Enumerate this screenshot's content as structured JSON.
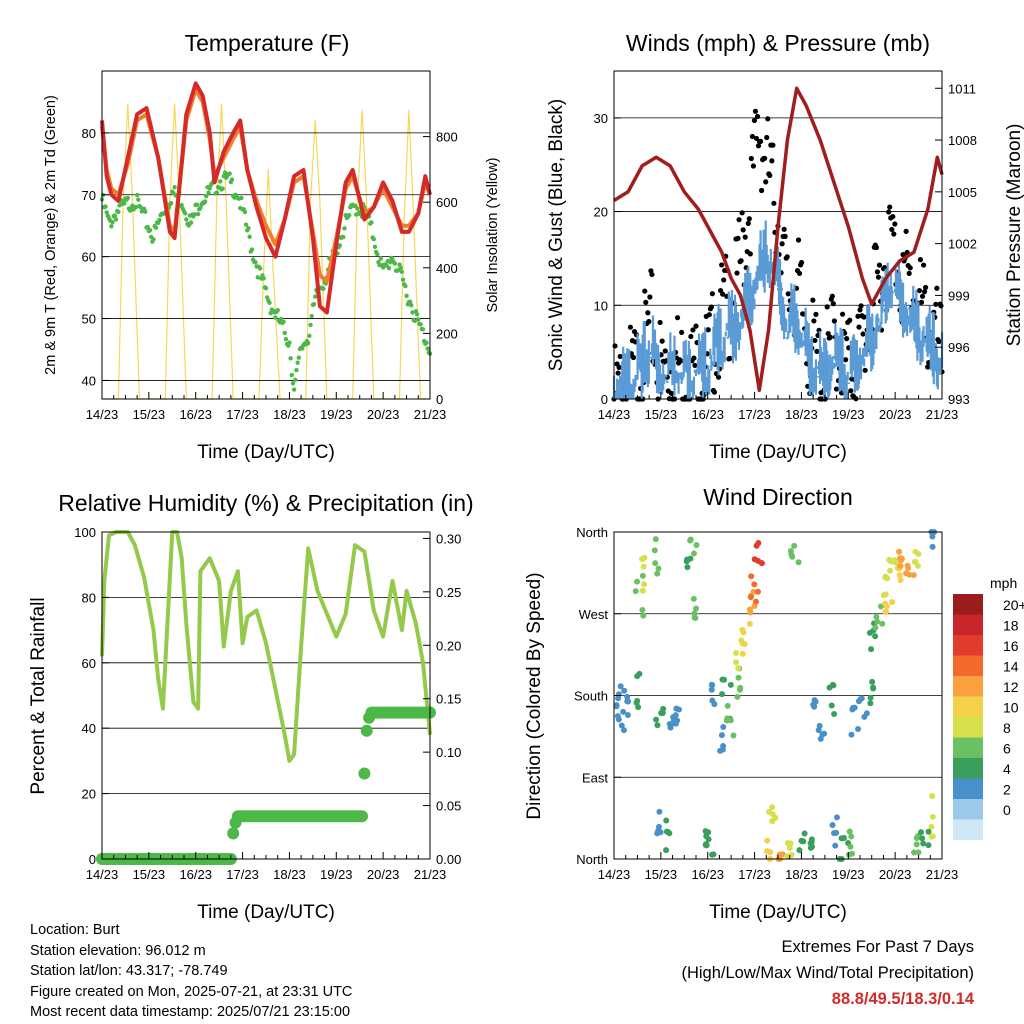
{
  "x_ticks": [
    "14/23",
    "15/23",
    "16/23",
    "17/23",
    "18/23",
    "19/23",
    "20/23",
    "21/23"
  ],
  "footer": {
    "location": "Location: Burt",
    "elevation": "Station elevation: 96.012 m",
    "latlon": "Station lat/lon: 43.317; -78.749",
    "created": "Figure created on Mon, 2025-07-21, at 23:31 UTC",
    "recent": "Most recent data timestamp: 2025/07/21 23:15:00",
    "extremes_title": "Extremes For Past 7 Days",
    "extremes_sub": "(High/Low/Max Wind/Total Precipitation)",
    "extremes_values": "88.8/49.5/18.3/0.14"
  },
  "colors": {
    "temp2m": "#d42a2a",
    "temp9m": "#f07f2a",
    "dewpoint": "#4cb848",
    "solar": "#f5d85a",
    "wind": "#5b9bd5",
    "gust": "#000000",
    "pressure": "#a01e1e",
    "rh": "#94c94c",
    "precip": "#4cb848",
    "extremes": "#d42a2a"
  },
  "chart_data": [
    {
      "type": "line",
      "title": "Temperature (F)",
      "xlabel": "Time (Day/UTC)",
      "ylabel": "2m & 9m T (Red, Orange) & 2m Td (Green)",
      "y2label": "Solar Insolation (Yellow)",
      "xlim": [
        0,
        7
      ],
      "ylim": [
        37,
        90
      ],
      "y2lim": [
        0,
        1000
      ],
      "yticks": [
        40,
        50,
        60,
        70,
        80
      ],
      "y2ticks": [
        0,
        200,
        400,
        600,
        800
      ],
      "series": [
        {
          "key": "t2m",
          "x": [
            0,
            0.1,
            0.2,
            0.35,
            0.55,
            0.75,
            0.95,
            1.2,
            1.45,
            1.55,
            1.8,
            2.0,
            2.15,
            2.3,
            2.4,
            2.6,
            2.8,
            2.95,
            3.1,
            3.3,
            3.5,
            3.7,
            3.9,
            4.1,
            4.3,
            4.5,
            4.65,
            4.8,
            5.0,
            5.2,
            5.35,
            5.6,
            5.8,
            6.0,
            6.2,
            6.4,
            6.55,
            6.75,
            6.9,
            7.0
          ],
          "values": [
            82,
            73,
            70,
            69,
            76,
            83,
            84,
            76,
            64,
            63,
            83,
            88,
            86,
            80,
            72,
            77,
            80,
            82,
            74,
            68,
            63,
            60,
            66,
            73,
            74,
            63,
            52,
            51,
            62,
            72,
            74,
            66,
            68,
            72,
            69,
            64,
            64,
            67,
            73,
            70
          ]
        },
        {
          "key": "t9m",
          "x": [
            0,
            0.1,
            0.2,
            0.35,
            0.55,
            0.75,
            0.95,
            1.2,
            1.45,
            1.55,
            1.8,
            2.0,
            2.15,
            2.3,
            2.4,
            2.6,
            2.8,
            2.95,
            3.1,
            3.3,
            3.5,
            3.7,
            3.9,
            4.1,
            4.3,
            4.5,
            4.65,
            4.8,
            5.0,
            5.2,
            5.35,
            5.6,
            5.8,
            6.0,
            6.2,
            6.4,
            6.55,
            6.75,
            6.9,
            7.0
          ],
          "values": [
            81,
            74,
            71,
            70,
            75,
            82,
            83,
            76,
            65,
            64,
            82,
            87,
            85,
            79,
            73,
            76,
            79,
            81,
            74,
            69,
            65,
            62,
            66,
            72,
            73,
            64,
            57,
            56,
            63,
            71,
            73,
            67,
            68,
            71,
            68,
            65,
            65,
            67,
            72,
            70
          ]
        },
        {
          "key": "td",
          "x": [
            0,
            0.15,
            0.3,
            0.5,
            0.7,
            0.9,
            1.1,
            1.3,
            1.5,
            1.7,
            1.9,
            2.1,
            2.3,
            2.5,
            2.7,
            2.9,
            3.0,
            3.2,
            3.4,
            3.6,
            3.8,
            4.0,
            4.1,
            4.25,
            4.4,
            4.6,
            4.8,
            5.0,
            5.2,
            5.4,
            5.6,
            5.8,
            6.0,
            6.2,
            6.4,
            6.6,
            6.8,
            7.0
          ],
          "values": [
            70,
            66,
            68,
            69,
            70,
            67,
            64,
            68,
            71,
            70,
            66,
            70,
            71,
            73,
            73,
            71,
            68,
            62,
            57,
            53,
            50,
            47,
            39,
            46,
            48,
            55,
            58,
            62,
            66,
            69,
            68,
            64,
            58,
            61,
            57,
            53,
            49,
            46
          ]
        },
        {
          "key": "solar",
          "x": [
            0,
            0.35,
            0.45,
            0.55,
            0.65,
            0.8,
            1.35,
            1.45,
            1.55,
            1.65,
            1.8,
            2.35,
            2.45,
            2.55,
            2.65,
            2.8,
            3.35,
            3.45,
            3.55,
            3.65,
            3.8,
            4.35,
            4.45,
            4.55,
            4.65,
            4.8,
            5.35,
            5.45,
            5.55,
            5.65,
            5.8,
            6.35,
            6.45,
            6.55,
            6.65,
            6.8,
            7.0
          ],
          "values": [
            0,
            0,
            600,
            900,
            600,
            0,
            0,
            600,
            900,
            600,
            0,
            0,
            600,
            900,
            600,
            0,
            0,
            400,
            700,
            400,
            0,
            0,
            600,
            850,
            600,
            0,
            0,
            600,
            880,
            600,
            0,
            0,
            550,
            880,
            550,
            0,
            0
          ]
        }
      ]
    },
    {
      "type": "scatter",
      "title": "Winds (mph) & Pressure (mb)",
      "xlabel": "Time (Day/UTC)",
      "ylabel": "Sonic Wind & Gust (Blue, Black)",
      "y2label": "Station Pressure (Maroon)",
      "xlim": [
        0,
        7
      ],
      "ylim": [
        0,
        35
      ],
      "y2lim": [
        993,
        1012
      ],
      "yticks": [
        0,
        10,
        20,
        30
      ],
      "y2ticks": [
        993,
        996,
        999,
        1002,
        1005,
        1008,
        1011
      ],
      "series": [
        {
          "key": "wind",
          "x": [
            0,
            0.5,
            0.8,
            1.0,
            1.3,
            1.6,
            2.0,
            2.3,
            2.6,
            2.9,
            3.1,
            3.3,
            3.5,
            3.7,
            3.9,
            4.2,
            4.5,
            4.7,
            5.0,
            5.3,
            5.6,
            5.9,
            6.1,
            6.3,
            6.6,
            6.9,
            7.0
          ],
          "values": [
            2,
            4,
            7,
            4,
            5,
            4,
            5,
            8,
            9,
            12,
            15,
            17,
            14,
            9,
            10,
            5,
            4,
            6,
            4,
            6,
            9,
            14,
            12,
            10,
            8,
            6,
            5
          ]
        },
        {
          "key": "gust",
          "x": [
            0,
            0.5,
            0.8,
            1.0,
            1.3,
            1.6,
            2.0,
            2.3,
            2.6,
            2.9,
            3.1,
            3.3,
            3.5,
            3.7,
            3.9,
            4.2,
            4.5,
            4.7,
            5.0,
            5.3,
            5.6,
            5.9,
            6.1,
            6.3,
            6.6,
            6.9,
            7.0
          ],
          "values": [
            3,
            6,
            11,
            6,
            7,
            6,
            7,
            12,
            14,
            24,
            32,
            27,
            22,
            14,
            15,
            8,
            6,
            10,
            6,
            9,
            14,
            20,
            17,
            15,
            12,
            9,
            7
          ]
        },
        {
          "key": "pressure",
          "x": [
            0,
            0.3,
            0.6,
            0.9,
            1.2,
            1.5,
            1.8,
            2.1,
            2.3,
            2.5,
            2.7,
            2.9,
            3.1,
            3.3,
            3.5,
            3.7,
            3.9,
            4.1,
            4.4,
            4.7,
            5.0,
            5.3,
            5.5,
            5.8,
            6.1,
            6.4,
            6.7,
            6.9,
            7.0
          ],
          "values": [
            1004.5,
            1005,
            1006.5,
            1007,
            1006.5,
            1005,
            1004,
            1002.5,
            1001.5,
            1000,
            999,
            997,
            993.5,
            997,
            1003,
            1008,
            1011,
            1010,
            1008,
            1005.5,
            1003,
            1000,
            998.5,
            1000,
            1001,
            1001.5,
            1004,
            1007,
            1006
          ]
        }
      ]
    },
    {
      "type": "line",
      "title": "Relative Humidity (%) & Precipitation (in)",
      "xlabel": "Time (Day/UTC)",
      "ylabel": "Percent & Total Rainfall",
      "xlim": [
        0,
        7
      ],
      "ylim": [
        0,
        100
      ],
      "y2lim": [
        0,
        0.306
      ],
      "yticks": [
        0,
        20,
        40,
        60,
        80,
        100
      ],
      "y2ticks": [
        0.0,
        0.05,
        0.1,
        0.15,
        0.2,
        0.25,
        0.3
      ],
      "series": [
        {
          "key": "rh",
          "x": [
            0,
            0.05,
            0.15,
            0.3,
            0.55,
            0.7,
            0.9,
            1.1,
            1.2,
            1.3,
            1.5,
            1.6,
            1.7,
            1.8,
            1.95,
            2.05,
            2.1,
            2.3,
            2.5,
            2.6,
            2.75,
            2.9,
            3.0,
            3.1,
            3.3,
            3.5,
            3.7,
            3.9,
            4.0,
            4.1,
            4.25,
            4.4,
            4.6,
            4.8,
            5.0,
            5.2,
            5.4,
            5.6,
            5.8,
            6.0,
            6.2,
            6.4,
            6.5,
            6.7,
            6.85,
            7.0
          ],
          "values": [
            62,
            85,
            99,
            100,
            100,
            96,
            86,
            70,
            55,
            46,
            100,
            100,
            92,
            72,
            48,
            46,
            88,
            92,
            85,
            65,
            82,
            88,
            66,
            74,
            76,
            66,
            52,
            38,
            30,
            32,
            65,
            95,
            82,
            75,
            68,
            75,
            96,
            94,
            76,
            68,
            85,
            70,
            82,
            72,
            60,
            38
          ]
        },
        {
          "key": "precip",
          "x": [
            0,
            2.75,
            2.78,
            2.88,
            5.55,
            5.6,
            5.65,
            5.72,
            7.0
          ],
          "values": [
            0,
            0,
            0.02,
            0.04,
            0.04,
            0.08,
            0.12,
            0.137,
            0.137
          ]
        }
      ]
    },
    {
      "type": "scatter",
      "title": "Wind Direction",
      "xlabel": "Time (Day/UTC)",
      "ylabel": "Direction (Colored By Speed)",
      "xlim": [
        0,
        7
      ],
      "ylim": [
        0,
        360
      ],
      "yticklabels": [
        "North",
        "East",
        "South",
        "West",
        "North"
      ],
      "legend_title": "mph",
      "legend_labels": [
        "20+",
        "18",
        "16",
        "14",
        "12",
        "10",
        "8",
        "6",
        "4",
        "2",
        "0"
      ],
      "legend_colors": [
        "#9b1c1c",
        "#c8242a",
        "#e23a2c",
        "#f26a2e",
        "#f8a13e",
        "#f5d14a",
        "#d6e04d",
        "#6cc064",
        "#3a9e5c",
        "#4a90c8",
        "#9cc9ea",
        "#cfe8f7"
      ],
      "series": [
        {
          "key": "dir",
          "x": [
            0.1,
            0.2,
            0.35,
            0.5,
            0.6,
            0.75,
            0.9,
            1.0,
            1.05,
            1.15,
            1.3,
            1.45,
            1.6,
            1.75,
            1.85,
            2.0,
            2.1,
            2.2,
            2.3,
            2.45,
            2.55,
            2.65,
            2.75,
            2.85,
            2.95,
            3.05,
            3.15,
            3.3,
            3.45,
            3.6,
            3.75,
            3.9,
            4.1,
            4.2,
            4.35,
            4.5,
            4.65,
            4.8,
            4.95,
            5.05,
            5.2,
            5.35,
            5.5,
            5.6,
            5.7,
            5.8,
            5.9,
            6.0,
            6.1,
            6.2,
            6.35,
            6.45,
            6.55,
            6.7,
            6.8,
            6.9
          ],
          "values": [
            180,
            170,
            175,
            200,
            300,
            320,
            345,
            170,
            60,
            40,
            180,
            160,
            355,
            345,
            300,
            20,
            40,
            180,
            150,
            190,
            170,
            200,
            240,
            260,
            290,
            315,
            340,
            30,
            50,
            20,
            10,
            360,
            20,
            40,
            170,
            160,
            180,
            50,
            20,
            30,
            170,
            180,
            200,
            250,
            280,
            300,
            300,
            320,
            335,
            330,
            340,
            330,
            40,
            20,
            60,
            360
          ],
          "speeds": [
            3,
            3,
            4,
            5,
            7,
            9,
            8,
            6,
            4,
            5,
            3,
            4,
            6,
            7,
            7,
            6,
            5,
            3,
            4,
            6,
            7,
            8,
            10,
            12,
            14,
            16,
            18,
            12,
            10,
            14,
            9,
            8,
            6,
            5,
            3,
            4,
            5,
            4,
            6,
            7,
            3,
            4,
            5,
            6,
            8,
            10,
            11,
            9,
            12,
            14,
            14,
            10,
            8,
            6,
            9,
            4
          ]
        }
      ]
    }
  ]
}
